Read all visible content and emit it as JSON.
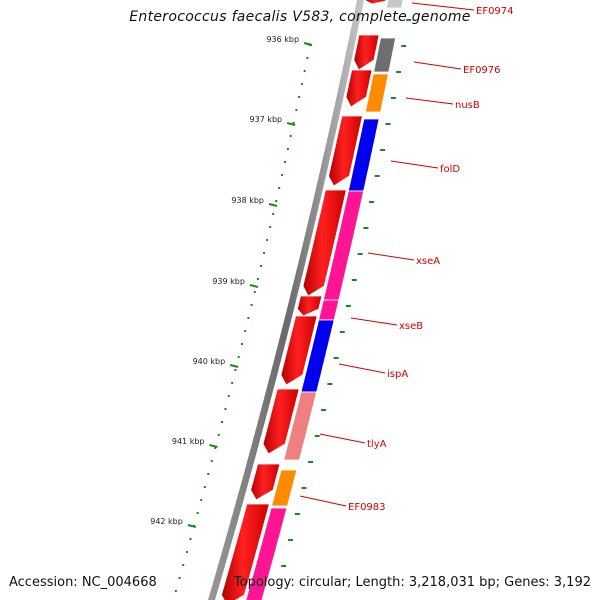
{
  "title": "Enterococcus faecalis V583, complete genome",
  "accession": "Accession: NC_004668",
  "summary": "Topology: circular; Length: 3,218,031 bp; Genes: 3,192",
  "ticks": [
    "936 kbp",
    "937 kbp",
    "938 kbp",
    "939 kbp",
    "940 kbp",
    "941 kbp",
    "942 kbp"
  ],
  "genes": [
    "EF0974",
    "EF0976",
    "nusB",
    "folD",
    "xseA",
    "xseB",
    "ispA",
    "tlyA",
    "EF0983"
  ],
  "colors": {
    "cds": "#ff0000",
    "backbone": "#8a8a8a",
    "tick": "#1a8a1a",
    "label": "#d40000",
    "category_gray": "#6e6e6e",
    "category_orange": "#ff8c00",
    "category_blue": "#0000ee",
    "category_pink": "#ff1493",
    "category_salmon": "#f08080"
  }
}
